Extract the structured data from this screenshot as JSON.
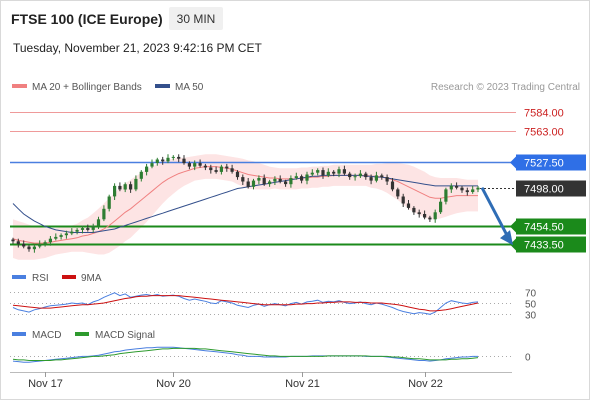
{
  "header": {
    "instrument": "FTSE 100 (ICE Europe)",
    "interval_badge": "30 MIN",
    "timestamp": "Tuesday, November 21, 2023 9:42:16 PM CET",
    "copyright": "Research © 2023 Trading Central"
  },
  "colors": {
    "candle_up": "#2e7d32",
    "candle_down": "#333333",
    "resistance_red": "#ef9a9a",
    "support_green": "#1b8a1b",
    "pivot_blue": "#4a7fe0",
    "ma20": "#f08080",
    "ma50": "#34508c",
    "bollinger_fill": "#fde4e4",
    "arrow": "#2f6db5",
    "rsi": "#4a7fe0",
    "rsi_9ma": "#cc1111",
    "macd": "#4a7fe0",
    "macd_signal": "#2e9a2e",
    "current_price_bg": "#333333"
  },
  "chart_data": [
    {
      "type": "candlestick",
      "panel": "price",
      "legend": [
        {
          "name": "MA 20 + Bollinger Bands",
          "color": "#f08080"
        },
        {
          "name": "MA 50",
          "color": "#34508c"
        }
      ],
      "legend_position": "top-left",
      "grid": false,
      "ylim": [
        7418,
        7600
      ],
      "x_ticks": [
        {
          "label": "Nov 17",
          "index": 6
        },
        {
          "label": "Nov 20",
          "index": 30
        },
        {
          "label": "Nov 21",
          "index": 54
        },
        {
          "label": "Nov 22",
          "index": 77
        }
      ],
      "levels": [
        {
          "value": 7584.0,
          "label": "7584.00",
          "kind": "resistance"
        },
        {
          "value": 7563.0,
          "label": "7563.00",
          "kind": "resistance"
        },
        {
          "value": 7527.5,
          "label": "7527.50",
          "kind": "pivot"
        },
        {
          "value": 7454.5,
          "label": "7454.50",
          "kind": "support"
        },
        {
          "value": 7433.5,
          "label": "7433.50",
          "kind": "support"
        }
      ],
      "current_price": {
        "value": 7498.0,
        "label": "7498.00"
      },
      "forecast_arrow": {
        "from_value": 7498,
        "to_value": 7436
      },
      "closes": [
        7437,
        7434,
        7431,
        7428,
        7431,
        7434,
        7436,
        7440,
        7442,
        7444,
        7446,
        7448,
        7450,
        7452,
        7450,
        7455,
        7462,
        7474,
        7488,
        7500,
        7496,
        7502,
        7496,
        7508,
        7516,
        7522,
        7526,
        7530,
        7528,
        7532,
        7533,
        7531,
        7526,
        7522,
        7526,
        7523,
        7521,
        7518,
        7516,
        7522,
        7520,
        7516,
        7510,
        7505,
        7499,
        7506,
        7509,
        7502,
        7505,
        7508,
        7505,
        7502,
        7509,
        7511,
        7506,
        7513,
        7515,
        7518,
        7512,
        7516,
        7514,
        7519,
        7514,
        7510,
        7511,
        7514,
        7510,
        7506,
        7512,
        7510,
        7505,
        7496,
        7488,
        7480,
        7475,
        7470,
        7468,
        7464,
        7462,
        7470,
        7482,
        7496,
        7500,
        7498,
        7495,
        7493,
        7496,
        7498
      ],
      "ma20": [
        7440,
        7438,
        7437,
        7436,
        7435,
        7435,
        7435,
        7436,
        7437,
        7438,
        7439,
        7440,
        7441,
        7443,
        7444,
        7446,
        7448,
        7451,
        7455,
        7460,
        7465,
        7470,
        7474,
        7479,
        7484,
        7489,
        7494,
        7499,
        7504,
        7508,
        7511,
        7514,
        7516,
        7518,
        7520,
        7521,
        7522,
        7522,
        7522,
        7521,
        7520,
        7519,
        7517,
        7515,
        7513,
        7512,
        7511,
        7510,
        7509,
        7509,
        7508,
        7508,
        7508,
        7508,
        7509,
        7509,
        7510,
        7510,
        7511,
        7511,
        7512,
        7512,
        7512,
        7512,
        7512,
        7512,
        7512,
        7511,
        7511,
        7510,
        7509,
        7507,
        7505,
        7502,
        7499,
        7496,
        7493,
        7490,
        7487,
        7486,
        7486,
        7487,
        7488,
        7489,
        7489,
        7489,
        7489,
        7489
      ],
      "ma50": [
        7480,
        7474,
        7468,
        7464,
        7460,
        7457,
        7454,
        7452,
        7450,
        7449,
        7448,
        7447,
        7447,
        7447,
        7447,
        7447,
        7448,
        7449,
        7450,
        7451,
        7453,
        7455,
        7457,
        7459,
        7461,
        7463,
        7465,
        7467,
        7469,
        7471,
        7473,
        7475,
        7477,
        7479,
        7481,
        7483,
        7485,
        7487,
        7489,
        7491,
        7493,
        7495,
        7497,
        7498,
        7499,
        7500,
        7501,
        7502,
        7503,
        7504,
        7505,
        7506,
        7507,
        7508,
        7509,
        7510,
        7511,
        7511,
        7512,
        7512,
        7512,
        7512,
        7512,
        7512,
        7512,
        7512,
        7511,
        7511,
        7510,
        7510,
        7509,
        7508,
        7507,
        7506,
        7505,
        7504,
        7503,
        7502,
        7501,
        7500,
        7500,
        7500,
        7500,
        7500,
        7500,
        7500,
        7500,
        7500
      ],
      "bollinger_halfwidth": [
        22,
        22,
        21,
        20,
        19,
        18,
        17,
        16,
        15,
        15,
        15,
        15,
        16,
        18,
        20,
        23,
        26,
        29,
        31,
        32,
        33,
        33,
        33,
        32,
        31,
        30,
        28,
        26,
        24,
        22,
        20,
        18,
        16,
        15,
        14,
        14,
        14,
        14,
        14,
        14,
        14,
        14,
        15,
        16,
        16,
        16,
        15,
        14,
        13,
        12,
        12,
        12,
        12,
        12,
        12,
        12,
        12,
        12,
        12,
        12,
        12,
        12,
        12,
        12,
        12,
        12,
        12,
        13,
        14,
        15,
        17,
        19,
        21,
        23,
        25,
        26,
        26,
        26,
        25,
        24,
        23,
        22,
        21,
        20,
        19,
        18,
        18,
        18
      ]
    },
    {
      "type": "line",
      "panel": "rsi",
      "legend": [
        {
          "name": "RSI",
          "color": "#4a7fe0"
        },
        {
          "name": "9MA",
          "color": "#cc1111"
        }
      ],
      "y_ticks": [
        {
          "label": "70",
          "value": 70
        },
        {
          "label": "50",
          "value": 50
        },
        {
          "label": "30",
          "value": 30
        }
      ],
      "ylim": [
        20,
        80
      ],
      "series": [
        {
          "name": "RSI",
          "values": [
            42,
            38,
            36,
            34,
            38,
            40,
            43,
            45,
            46,
            47,
            48,
            50,
            49,
            50,
            47,
            52,
            55,
            60,
            64,
            68,
            63,
            66,
            60,
            62,
            64,
            65,
            63,
            65,
            62,
            63,
            64,
            62,
            58,
            55,
            57,
            55,
            53,
            50,
            49,
            54,
            52,
            50,
            46,
            44,
            42,
            46,
            48,
            44,
            47,
            49,
            47,
            45,
            49,
            51,
            48,
            52,
            53,
            55,
            51,
            53,
            52,
            54,
            51,
            49,
            50,
            52,
            49,
            47,
            50,
            48,
            45,
            42,
            38,
            35,
            33,
            31,
            33,
            32,
            30,
            34,
            42,
            50,
            54,
            52,
            50,
            49,
            51,
            52
          ]
        },
        {
          "name": "9MA",
          "values": [
            46,
            45,
            44,
            43,
            42,
            41,
            41,
            41,
            42,
            43,
            44,
            45,
            46,
            47,
            47,
            48,
            49,
            50,
            52,
            54,
            56,
            58,
            59,
            61,
            62,
            62,
            63,
            63,
            63,
            63,
            63,
            63,
            62,
            61,
            60,
            59,
            58,
            57,
            56,
            55,
            54,
            53,
            52,
            51,
            50,
            49,
            48,
            47,
            47,
            47,
            47,
            47,
            47,
            48,
            48,
            49,
            49,
            50,
            50,
            51,
            51,
            52,
            52,
            52,
            51,
            51,
            51,
            50,
            50,
            50,
            49,
            48,
            47,
            45,
            43,
            41,
            39,
            38,
            36,
            36,
            37,
            38,
            40,
            42,
            44,
            46,
            48,
            50
          ]
        }
      ]
    },
    {
      "type": "line",
      "panel": "macd",
      "legend": [
        {
          "name": "MACD",
          "color": "#4a7fe0"
        },
        {
          "name": "MACD Signal",
          "color": "#2e9a2e"
        }
      ],
      "y_ticks": [
        {
          "label": "0",
          "value": 0
        }
      ],
      "ylim": [
        -20,
        25
      ],
      "series": [
        {
          "name": "MACD",
          "values": [
            -8,
            -9,
            -10,
            -10,
            -9,
            -8,
            -7,
            -6,
            -5,
            -4,
            -3,
            -2,
            -1,
            0,
            0,
            1,
            2,
            4,
            6,
            8,
            9,
            11,
            12,
            13,
            14,
            15,
            15,
            16,
            16,
            16,
            16,
            15,
            14,
            13,
            12,
            11,
            10,
            9,
            8,
            7,
            6,
            5,
            3,
            2,
            0,
            0,
            0,
            -1,
            -1,
            -1,
            -1,
            -1,
            0,
            0,
            0,
            0,
            1,
            1,
            1,
            1,
            1,
            1,
            1,
            1,
            1,
            1,
            0,
            0,
            0,
            0,
            -1,
            -2,
            -3,
            -4,
            -5,
            -6,
            -7,
            -7,
            -8,
            -7,
            -6,
            -4,
            -3,
            -2,
            -1,
            -1,
            0,
            0
          ]
        },
        {
          "name": "MACD Signal",
          "values": [
            -5,
            -6,
            -6,
            -7,
            -7,
            -7,
            -7,
            -7,
            -6,
            -6,
            -5,
            -4,
            -3,
            -2,
            -1,
            0,
            0,
            1,
            2,
            3,
            5,
            6,
            7,
            8,
            9,
            10,
            11,
            12,
            13,
            13,
            14,
            14,
            14,
            14,
            14,
            13,
            13,
            12,
            11,
            10,
            9,
            8,
            7,
            6,
            5,
            4,
            3,
            2,
            1,
            1,
            0,
            0,
            0,
            0,
            0,
            0,
            0,
            0,
            0,
            1,
            1,
            1,
            1,
            1,
            1,
            1,
            1,
            0,
            0,
            0,
            0,
            -1,
            -1,
            -2,
            -3,
            -4,
            -4,
            -5,
            -6,
            -6,
            -6,
            -6,
            -5,
            -5,
            -4,
            -4,
            -3,
            -2
          ]
        }
      ]
    }
  ]
}
